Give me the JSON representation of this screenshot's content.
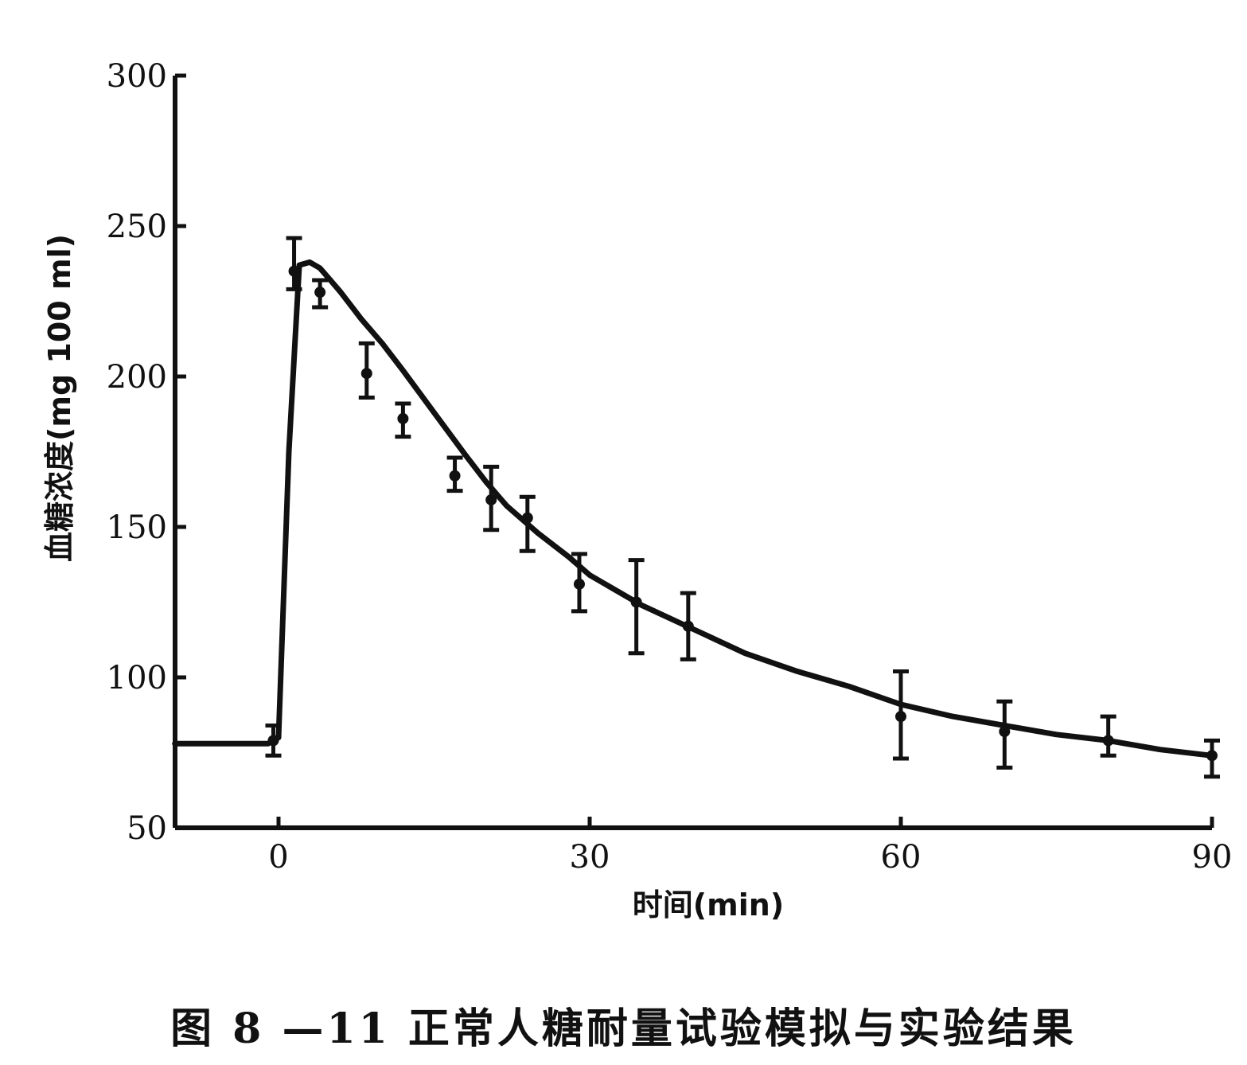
{
  "chart_data": {
    "type": "line",
    "xlabel": "时间(min)",
    "ylabel": "血糖浓度(mg 100 ml)",
    "xlim": [
      -10,
      90
    ],
    "ylim": [
      50,
      300
    ],
    "x_ticks": [
      0,
      30,
      60,
      90
    ],
    "y_ticks": [
      50,
      100,
      150,
      200,
      250,
      300
    ],
    "grid": false,
    "series": [
      {
        "kind": "line",
        "x": [
          -10,
          -1,
          0,
          1,
          2,
          3,
          4,
          5,
          6,
          8,
          10,
          12,
          15,
          18,
          20,
          22,
          25,
          28,
          30,
          35,
          40,
          45,
          50,
          55,
          60,
          65,
          70,
          75,
          80,
          85,
          90
        ],
        "y": [
          78,
          78,
          80,
          175,
          237,
          238,
          236,
          232,
          228,
          219,
          211,
          202,
          188,
          174,
          165,
          157,
          148,
          140,
          134,
          124,
          116,
          108,
          102,
          97,
          91,
          87,
          84,
          81,
          79,
          76,
          74
        ]
      },
      {
        "kind": "errorbar",
        "x": [
          -0.5,
          1.5,
          4,
          8.5,
          12,
          17,
          20.5,
          24,
          29,
          34.5,
          39.5,
          60,
          70,
          80,
          90
        ],
        "y": [
          79,
          235,
          228,
          201,
          186,
          167,
          159,
          153,
          131,
          125,
          117,
          87,
          82,
          79,
          74
        ],
        "err_low": [
          74,
          229,
          223,
          193,
          180,
          162,
          149,
          142,
          122,
          108,
          106,
          73,
          70,
          74,
          67
        ],
        "err_high": [
          84,
          246,
          232,
          211,
          191,
          173,
          170,
          160,
          141,
          139,
          128,
          102,
          92,
          87,
          79
        ]
      }
    ]
  },
  "caption": "图 8 —11   正常人糖耐量试验模拟与实验结果"
}
